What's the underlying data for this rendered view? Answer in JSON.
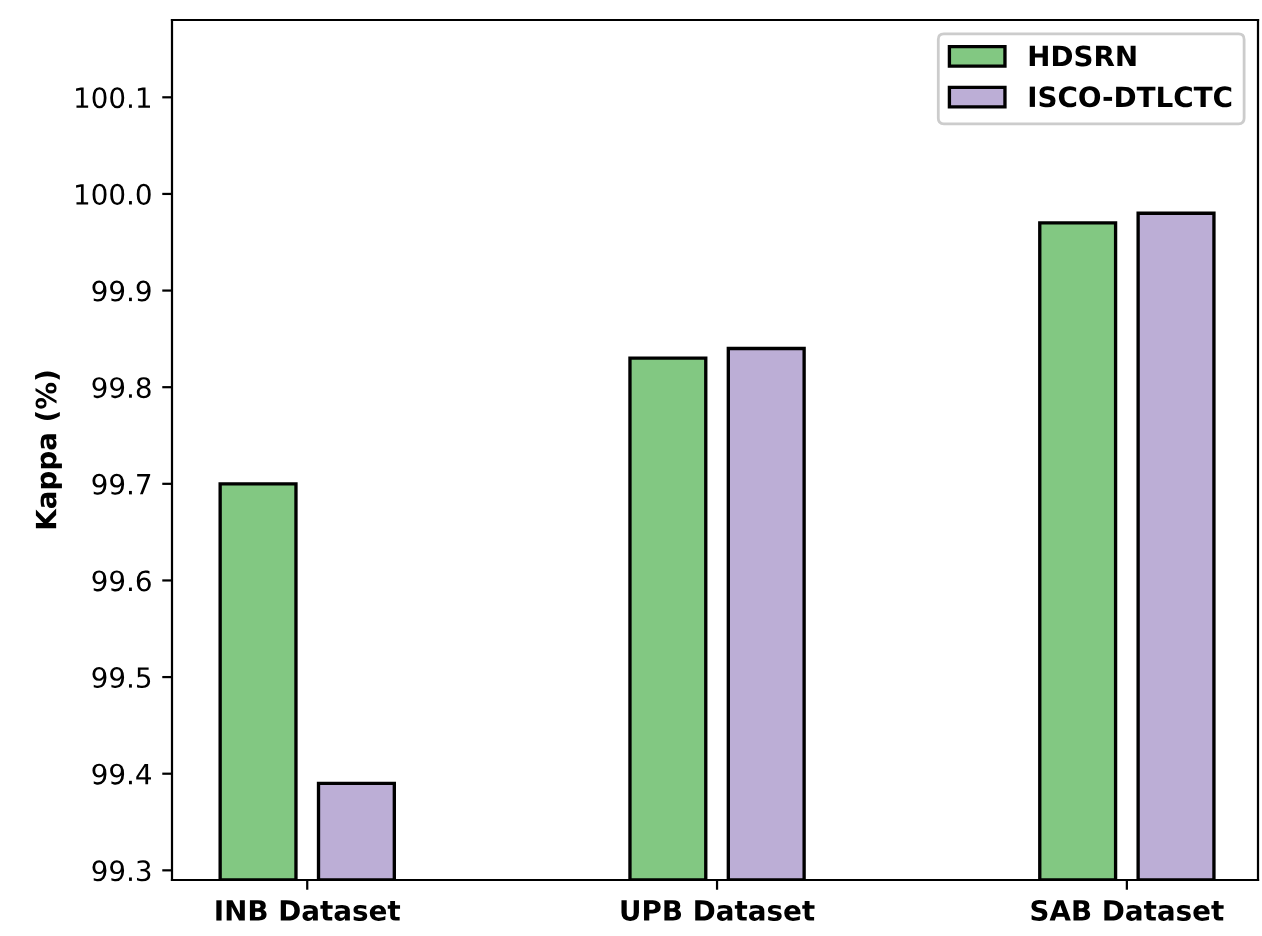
{
  "chart_data": {
    "type": "bar",
    "ylabel": "Kappa (%)",
    "categories": [
      "INB Dataset",
      "UPB Dataset",
      "SAB Dataset"
    ],
    "series": [
      {
        "name": "HDSRN",
        "color": "#82c882",
        "values": [
          99.7,
          99.83,
          99.97
        ]
      },
      {
        "name": "ISCO-DTLCTC",
        "color": "#bcaed6",
        "values": [
          99.39,
          99.84,
          99.98
        ]
      }
    ],
    "ylim": [
      99.29,
      100.18
    ],
    "yticks": [
      99.3,
      99.4,
      99.5,
      99.6,
      99.7,
      99.8,
      99.9,
      {
        "value": 100.0,
        "label": "100.0"
      },
      100.1
    ],
    "grid": false,
    "legend": "top right"
  }
}
